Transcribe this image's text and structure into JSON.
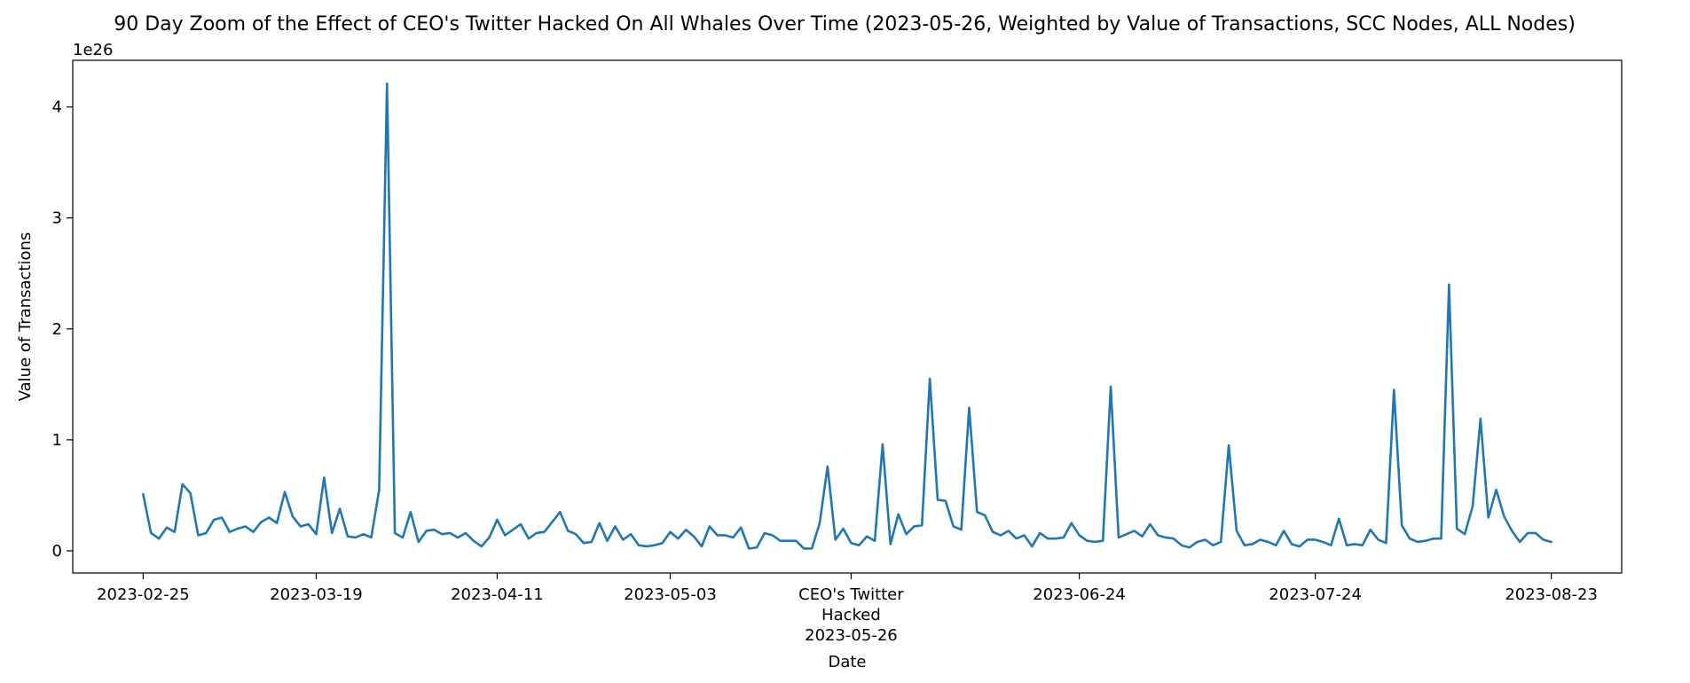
{
  "chart_data": {
    "type": "line",
    "title": "90 Day Zoom of the Effect of CEO's Twitter Hacked On All Whales Over Time (2023-05-26, Weighted by Value of Transactions, SCC Nodes, ALL Nodes)",
    "xlabel": "Date",
    "ylabel": "Value of Transactions",
    "y_offset_label": "1e26",
    "ylim": [
      -0.2,
      4.42
    ],
    "y_unit_scale": "1e26",
    "grid": false,
    "legend": "none",
    "line_color": "#1f77b4",
    "yticks": [
      {
        "value": 0,
        "label": "0"
      },
      {
        "value": 1,
        "label": "1"
      },
      {
        "value": 2,
        "label": "2"
      },
      {
        "value": 3,
        "label": "3"
      },
      {
        "value": 4,
        "label": "4"
      }
    ],
    "xticks": [
      {
        "date": "2023-02-25",
        "label": [
          "2023-02-25"
        ]
      },
      {
        "date": "2023-03-19",
        "label": [
          "2023-03-19"
        ]
      },
      {
        "date": "2023-04-11",
        "label": [
          "2023-04-11"
        ]
      },
      {
        "date": "2023-05-03",
        "label": [
          "2023-05-03"
        ]
      },
      {
        "date": "2023-05-26",
        "label": [
          "CEO's Twitter",
          "Hacked",
          "2023-05-26"
        ]
      },
      {
        "date": "2023-06-24",
        "label": [
          "2023-06-24"
        ]
      },
      {
        "date": "2023-07-24",
        "label": [
          "2023-07-24"
        ]
      },
      {
        "date": "2023-08-23",
        "label": [
          "2023-08-23"
        ]
      }
    ],
    "x": [
      "2023-02-25",
      "2023-02-26",
      "2023-02-27",
      "2023-02-28",
      "2023-03-01",
      "2023-03-02",
      "2023-03-03",
      "2023-03-04",
      "2023-03-05",
      "2023-03-06",
      "2023-03-07",
      "2023-03-08",
      "2023-03-09",
      "2023-03-10",
      "2023-03-11",
      "2023-03-12",
      "2023-03-13",
      "2023-03-14",
      "2023-03-15",
      "2023-03-16",
      "2023-03-17",
      "2023-03-18",
      "2023-03-19",
      "2023-03-20",
      "2023-03-21",
      "2023-03-22",
      "2023-03-23",
      "2023-03-24",
      "2023-03-25",
      "2023-03-26",
      "2023-03-27",
      "2023-03-28",
      "2023-03-29",
      "2023-03-30",
      "2023-03-31",
      "2023-04-01",
      "2023-04-02",
      "2023-04-03",
      "2023-04-04",
      "2023-04-05",
      "2023-04-06",
      "2023-04-07",
      "2023-04-08",
      "2023-04-09",
      "2023-04-10",
      "2023-04-11",
      "2023-04-12",
      "2023-04-13",
      "2023-04-14",
      "2023-04-15",
      "2023-04-16",
      "2023-04-17",
      "2023-04-18",
      "2023-04-19",
      "2023-04-20",
      "2023-04-21",
      "2023-04-22",
      "2023-04-23",
      "2023-04-24",
      "2023-04-25",
      "2023-04-26",
      "2023-04-27",
      "2023-04-28",
      "2023-04-29",
      "2023-04-30",
      "2023-05-01",
      "2023-05-02",
      "2023-05-03",
      "2023-05-04",
      "2023-05-05",
      "2023-05-06",
      "2023-05-07",
      "2023-05-08",
      "2023-05-09",
      "2023-05-10",
      "2023-05-11",
      "2023-05-12",
      "2023-05-13",
      "2023-05-14",
      "2023-05-15",
      "2023-05-16",
      "2023-05-17",
      "2023-05-18",
      "2023-05-19",
      "2023-05-20",
      "2023-05-21",
      "2023-05-22",
      "2023-05-23",
      "2023-05-24",
      "2023-05-25",
      "2023-05-26",
      "2023-05-27",
      "2023-05-28",
      "2023-05-29",
      "2023-05-30",
      "2023-05-31",
      "2023-06-01",
      "2023-06-02",
      "2023-06-03",
      "2023-06-04",
      "2023-06-05",
      "2023-06-06",
      "2023-06-07",
      "2023-06-08",
      "2023-06-09",
      "2023-06-10",
      "2023-06-11",
      "2023-06-12",
      "2023-06-13",
      "2023-06-14",
      "2023-06-15",
      "2023-06-16",
      "2023-06-17",
      "2023-06-18",
      "2023-06-19",
      "2023-06-20",
      "2023-06-21",
      "2023-06-22",
      "2023-06-23",
      "2023-06-24",
      "2023-06-25",
      "2023-06-26",
      "2023-06-27",
      "2023-06-28",
      "2023-06-29",
      "2023-06-30",
      "2023-07-01",
      "2023-07-02",
      "2023-07-03",
      "2023-07-04",
      "2023-07-05",
      "2023-07-06",
      "2023-07-07",
      "2023-07-08",
      "2023-07-09",
      "2023-07-10",
      "2023-07-11",
      "2023-07-12",
      "2023-07-13",
      "2023-07-14",
      "2023-07-15",
      "2023-07-16",
      "2023-07-17",
      "2023-07-18",
      "2023-07-19",
      "2023-07-20",
      "2023-07-21",
      "2023-07-22",
      "2023-07-23",
      "2023-07-24",
      "2023-07-25",
      "2023-07-26",
      "2023-07-27",
      "2023-07-28",
      "2023-07-29",
      "2023-07-30",
      "2023-07-31",
      "2023-08-01",
      "2023-08-02",
      "2023-08-03",
      "2023-08-04",
      "2023-08-05",
      "2023-08-06",
      "2023-08-07",
      "2023-08-08",
      "2023-08-09",
      "2023-08-10",
      "2023-08-11",
      "2023-08-12",
      "2023-08-13",
      "2023-08-14",
      "2023-08-15",
      "2023-08-16",
      "2023-08-17",
      "2023-08-18",
      "2023-08-19",
      "2023-08-20",
      "2023-08-21",
      "2023-08-22",
      "2023-08-23"
    ],
    "values": [
      0.51,
      0.16,
      0.11,
      0.21,
      0.17,
      0.6,
      0.52,
      0.14,
      0.16,
      0.28,
      0.3,
      0.17,
      0.2,
      0.22,
      0.17,
      0.26,
      0.3,
      0.25,
      0.53,
      0.31,
      0.22,
      0.24,
      0.15,
      0.66,
      0.16,
      0.38,
      0.13,
      0.12,
      0.15,
      0.12,
      0.55,
      4.21,
      0.16,
      0.12,
      0.35,
      0.08,
      0.18,
      0.19,
      0.15,
      0.16,
      0.12,
      0.16,
      0.09,
      0.04,
      0.12,
      0.28,
      0.14,
      0.19,
      0.24,
      0.11,
      0.16,
      0.17,
      0.26,
      0.35,
      0.18,
      0.15,
      0.07,
      0.08,
      0.25,
      0.09,
      0.22,
      0.1,
      0.15,
      0.05,
      0.04,
      0.05,
      0.07,
      0.17,
      0.11,
      0.19,
      0.13,
      0.04,
      0.22,
      0.14,
      0.14,
      0.12,
      0.21,
      0.02,
      0.03,
      0.16,
      0.14,
      0.09,
      0.09,
      0.09,
      0.02,
      0.02,
      0.25,
      0.76,
      0.1,
      0.2,
      0.07,
      0.05,
      0.13,
      0.09,
      0.96,
      0.06,
      0.33,
      0.15,
      0.22,
      0.23,
      1.55,
      0.46,
      0.45,
      0.22,
      0.19,
      1.29,
      0.35,
      0.32,
      0.17,
      0.14,
      0.18,
      0.11,
      0.14,
      0.04,
      0.16,
      0.11,
      0.11,
      0.12,
      0.25,
      0.14,
      0.09,
      0.08,
      0.09,
      1.48,
      0.12,
      0.15,
      0.18,
      0.13,
      0.24,
      0.14,
      0.12,
      0.11,
      0.05,
      0.03,
      0.08,
      0.1,
      0.05,
      0.08,
      0.95,
      0.18,
      0.05,
      0.06,
      0.1,
      0.08,
      0.05,
      0.18,
      0.06,
      0.04,
      0.1,
      0.1,
      0.08,
      0.05,
      0.29,
      0.05,
      0.06,
      0.05,
      0.19,
      0.1,
      0.07,
      1.45,
      0.23,
      0.11,
      0.08,
      0.09,
      0.11,
      0.11,
      2.4,
      0.2,
      0.15,
      0.4,
      1.19,
      0.3,
      0.55,
      0.31,
      0.18,
      0.08,
      0.16,
      0.16,
      0.1,
      0.08
    ]
  }
}
